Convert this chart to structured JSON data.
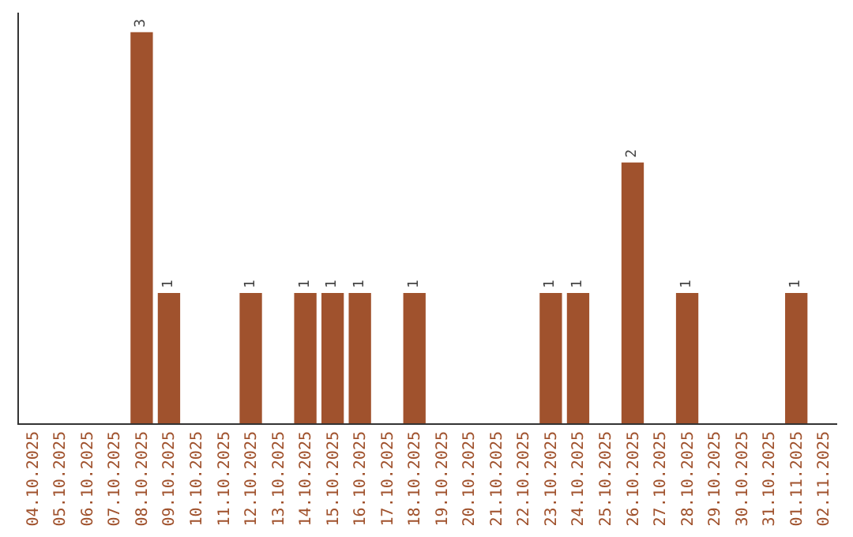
{
  "chart_data": {
    "type": "bar",
    "categories": [
      "04.10.2025",
      "05.10.2025",
      "06.10.2025",
      "07.10.2025",
      "08.10.2025",
      "09.10.2025",
      "10.10.2025",
      "11.10.2025",
      "12.10.2025",
      "13.10.2025",
      "14.10.2025",
      "15.10.2025",
      "16.10.2025",
      "17.10.2025",
      "18.10.2025",
      "19.10.2025",
      "20.10.2025",
      "21.10.2025",
      "22.10.2025",
      "23.10.2025",
      "24.10.2025",
      "25.10.2025",
      "26.10.2025",
      "27.10.2025",
      "28.10.2025",
      "29.10.2025",
      "30.10.2025",
      "31.10.2025",
      "01.11.2025",
      "02.11.2025"
    ],
    "values": [
      0,
      0,
      0,
      0,
      3,
      1,
      0,
      0,
      1,
      0,
      1,
      1,
      1,
      0,
      1,
      0,
      0,
      0,
      0,
      1,
      1,
      0,
      2,
      0,
      1,
      0,
      0,
      0,
      1,
      0
    ],
    "value_labels": [
      null,
      null,
      null,
      null,
      "3",
      "1",
      null,
      null,
      "1",
      null,
      "1",
      "1",
      "1",
      null,
      "1",
      null,
      null,
      null,
      null,
      "1",
      "1",
      null,
      "2",
      null,
      "1",
      null,
      null,
      null,
      "1",
      null
    ],
    "color": "#a0522d",
    "ylim": [
      0,
      3.15
    ],
    "tick_labels": "x"
  }
}
